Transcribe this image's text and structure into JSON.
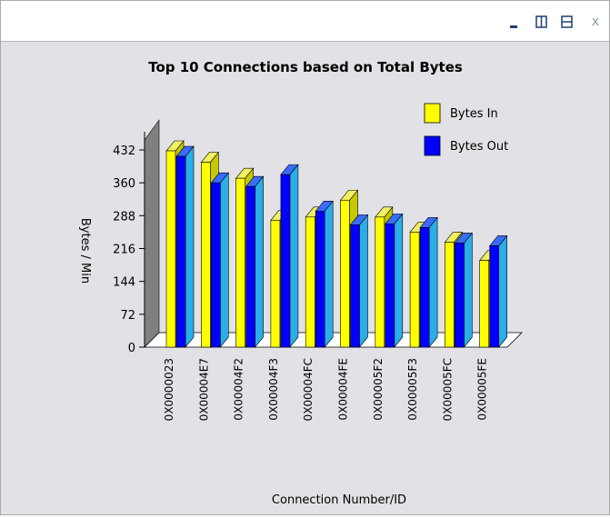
{
  "window": {
    "controls": {
      "minimize_icon": "minimize-icon",
      "split_vertical_icon": "split-vertical-icon",
      "split_horizontal_icon": "split-horizontal-icon",
      "close_label": "x"
    }
  },
  "chart_data": {
    "type": "bar",
    "title": "Top 10 Connections based on Total Bytes",
    "xlabel": "Connection Number/ID",
    "ylabel": "Bytes / Min",
    "ylim": [
      0,
      480
    ],
    "yticks": [
      "0",
      "72",
      "144",
      "216",
      "288",
      "360",
      "432"
    ],
    "categories": [
      "0X0000023",
      "0X00004E7",
      "0X00004F2",
      "0X00004F3",
      "0X00004FC",
      "0X00004FE",
      "0X00005F2",
      "0X00005F3",
      "0X00005FC",
      "0X00005FE"
    ],
    "series": [
      {
        "name": "Bytes In",
        "color": "#ffff00",
        "values": [
          430,
          405,
          370,
          278,
          285,
          322,
          285,
          252,
          230,
          190
        ]
      },
      {
        "name": "Bytes Out",
        "color": "#0000ff",
        "values": [
          418,
          360,
          352,
          378,
          298,
          268,
          270,
          262,
          228,
          222
        ]
      }
    ],
    "legend": "top-right",
    "style": "3d"
  }
}
